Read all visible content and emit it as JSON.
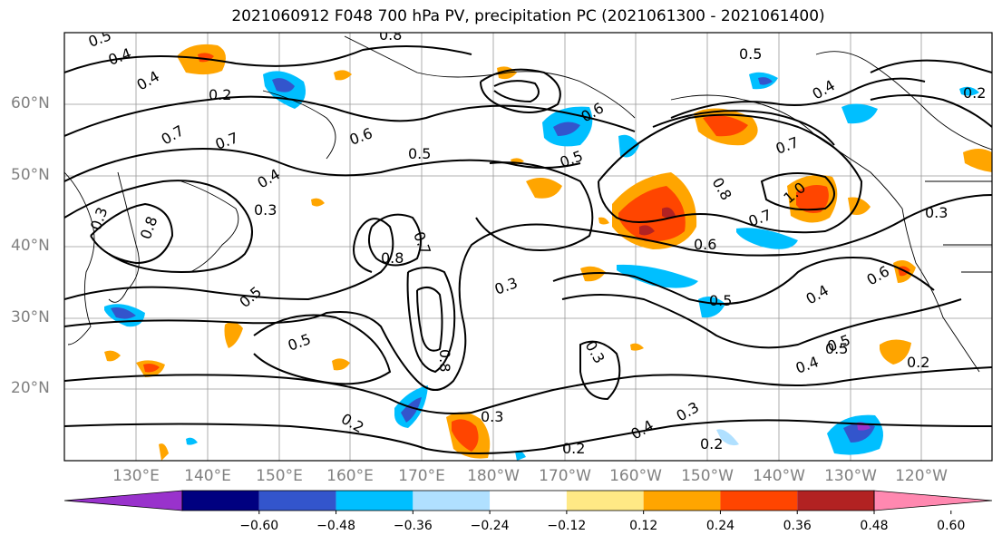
{
  "title": "2021060912 F048 700 hPa PV, precipitation PC (2021061300 - 2021061400)",
  "lat_labels": [
    "60°N",
    "50°N",
    "40°N",
    "30°N",
    "20°N"
  ],
  "lon_labels": [
    "130°E",
    "140°E",
    "150°E",
    "160°E",
    "170°E",
    "180°W",
    "170°W",
    "160°W",
    "150°W",
    "140°W",
    "130°W",
    "120°W"
  ],
  "contour_labels": [
    "0.5",
    "0.4",
    "0.8",
    "0.4",
    "0.7",
    "0.7",
    "0.6",
    "0.5",
    "0.5",
    "0.4",
    "0.3",
    "0.8",
    "0.8",
    "0.7",
    "0.5",
    "0.3",
    "0.5",
    "0.2",
    "0.3",
    "0.8",
    "0.3",
    "0.2",
    "0.4",
    "0.3",
    "0.2",
    "0.8",
    "1.0",
    "0.7",
    "0.6",
    "0.5",
    "0.4",
    "0.5",
    "0.4",
    "0.2",
    "0.6",
    "0.5",
    "0.5",
    "0.6",
    "0.7",
    "0.4",
    "0.3",
    "0.3",
    "0.2",
    "0.2"
  ],
  "colorbar": {
    "ticks": [
      "−0.60",
      "−0.48",
      "−0.36",
      "−0.24",
      "−0.12",
      "0.12",
      "0.24",
      "0.36",
      "0.48",
      "0.60"
    ],
    "colors": [
      "#9932cc",
      "#000080",
      "#3355cc",
      "#00bfff",
      "#b0e0ff",
      "#ffffff",
      "#ffe985",
      "#ffa500",
      "#ff4500",
      "#b22222",
      "#ff88b0"
    ]
  }
}
